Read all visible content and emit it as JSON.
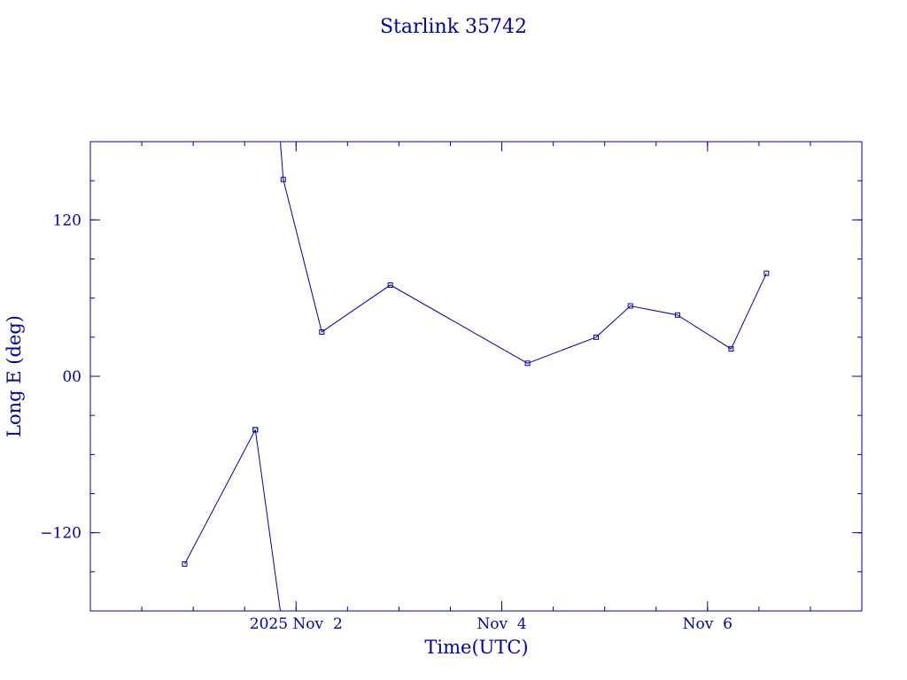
{
  "chart_data": {
    "type": "line",
    "title": "Starlink 35742",
    "xlabel": "Time(UTC)",
    "ylabel": "Long E (deg)",
    "xlim": [
      "2025-10-31T00:00",
      "2025-11-07T12:00"
    ],
    "ylim": [
      -180,
      180
    ],
    "x_ticks": [
      {
        "x": "2025-11-02T00:00",
        "label": "2025 Nov  2"
      },
      {
        "x": "2025-11-04T00:00",
        "label": "Nov  4"
      },
      {
        "x": "2025-11-06T00:00",
        "label": "Nov  6"
      }
    ],
    "y_ticks": [
      {
        "y": 120,
        "label": "120"
      },
      {
        "y": 0,
        "label": "00"
      },
      {
        "y": -120,
        "label": "−120"
      }
    ],
    "grid": false,
    "color": "#0000aa",
    "series": [
      {
        "x": [
          "2025-10-31T22:00",
          "2025-11-01T14:30"
        ],
        "y": [
          -144,
          -41
        ]
      },
      {
        "x": [
          "2025-11-01T14:30",
          "2025-11-01T20:20"
        ],
        "y": [
          -41,
          -180
        ]
      },
      {
        "x": [
          "2025-11-01T20:20",
          "2025-11-01T21:00",
          "2025-11-02T06:00",
          "2025-11-02T22:00",
          "2025-11-04T06:00",
          "2025-11-04T22:00",
          "2025-11-05T06:00",
          "2025-11-05T17:00",
          "2025-11-06T05:30",
          "2025-11-06T13:45"
        ],
        "y": [
          180,
          151,
          34,
          70,
          10,
          30,
          54,
          47,
          21,
          79
        ]
      }
    ]
  }
}
